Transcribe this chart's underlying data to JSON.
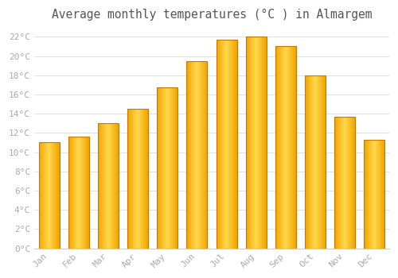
{
  "months": [
    "Jan",
    "Feb",
    "Mar",
    "Apr",
    "May",
    "Jun",
    "Jul",
    "Aug",
    "Sep",
    "Oct",
    "Nov",
    "Dec"
  ],
  "temperatures": [
    11.0,
    11.6,
    13.0,
    14.5,
    16.7,
    19.5,
    21.7,
    22.0,
    21.0,
    18.0,
    13.7,
    11.3
  ],
  "bar_color_center": "#FFD84D",
  "bar_color_edge": "#F0A500",
  "bar_border_color": "#C87800",
  "title": "Average monthly temperatures (°C ) in Almargem",
  "title_fontsize": 10.5,
  "ytick_step": 2,
  "ymin": 0,
  "ymax": 23,
  "background_color": "#FFFFFF",
  "grid_color": "#E0E0E0",
  "tick_label_color": "#AAAAAA",
  "font_family": "monospace"
}
